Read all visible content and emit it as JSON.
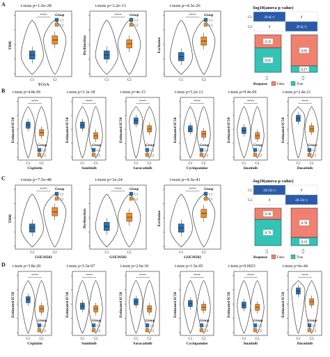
{
  "colors": {
    "C1": "#2a6fb0",
    "C2": "#ee8a2a",
    "false": "#f08070",
    "true": "#35c3b6",
    "heat_hi": "#2a5aa8",
    "heat_lo": "#ffffff"
  },
  "group_title": "Group",
  "groups": [
    "C1",
    "C2"
  ],
  "sig": "****",
  "panels": {
    "A": {
      "label": "A"
    },
    "B": {
      "label": "B"
    },
    "C": {
      "label": "C"
    },
    "D": {
      "label": "D"
    }
  },
  "chart_data": [
    {
      "type": "violin",
      "panel": "A",
      "title": "t-tests p=1.6e-28",
      "ylabel": "TIDE",
      "xlabel": "TCGA",
      "categories": [
        "C1",
        "C2"
      ],
      "medians": [
        0.35,
        0.62
      ],
      "ylim": [
        0,
        1
      ]
    },
    {
      "type": "violin",
      "panel": "A",
      "title": "t-tests p=3.2e-13",
      "ylabel": "Dysfunction",
      "xlabel": "",
      "categories": [
        "C1",
        "C2"
      ],
      "medians": [
        0.35,
        0.55
      ],
      "ylim": [
        0,
        1
      ]
    },
    {
      "type": "violin",
      "panel": "A",
      "title": "t-tests p=4.3e-26",
      "ylabel": "Exclusion",
      "xlabel": "",
      "categories": [
        "C1",
        "C2"
      ],
      "medians": [
        0.32,
        0.6
      ],
      "ylim": [
        0,
        1
      ]
    },
    {
      "type": "heatmap",
      "panel": "A",
      "title": "-log10(anova p value)",
      "rows": [
        "C1",
        "C2"
      ],
      "cols": [
        "C1",
        "C2"
      ],
      "values": [
        [
          "20.4(+)",
          "0"
        ],
        [
          "0",
          "20.4(+)"
        ]
      ]
    },
    {
      "type": "bar",
      "panel": "A",
      "stacked": true,
      "categories": [
        "C1",
        "C2"
      ],
      "series": [
        {
          "name": "False",
          "values": [
            0.35,
            0.83
          ]
        },
        {
          "name": "True",
          "values": [
            0.65,
            0.17
          ]
        }
      ],
      "legend_title": "Response"
    },
    {
      "type": "violin",
      "panel": "B",
      "title": "t-tests p=4.8e-06",
      "ylabel": "Estimated IC50",
      "xlabel": "Cisplatin",
      "categories": [
        "C1",
        "C2"
      ],
      "medians": [
        0.62,
        0.48
      ],
      "ylim": [
        0,
        1
      ]
    },
    {
      "type": "violin",
      "panel": "B",
      "title": "t-tests p=3.3e-18",
      "ylabel": "Estimated IC50",
      "xlabel": "Sunitinib",
      "categories": [
        "C1",
        "C2"
      ],
      "medians": [
        0.62,
        0.42
      ],
      "ylim": [
        0,
        1
      ]
    },
    {
      "type": "violin",
      "panel": "B",
      "title": "t-tests p=4e-15",
      "ylabel": "Estimated IC50",
      "xlabel": "Saracatinib",
      "categories": [
        "C1",
        "C2"
      ],
      "medians": [
        0.7,
        0.55
      ],
      "ylim": [
        0,
        1
      ]
    },
    {
      "type": "violin",
      "panel": "B",
      "title": "t-tests p=5.2e-13",
      "ylabel": "Estimated IC50",
      "xlabel": "Cyclopamine",
      "categories": [
        "C1",
        "C2"
      ],
      "medians": [
        0.55,
        0.45
      ],
      "ylim": [
        0,
        1
      ]
    },
    {
      "type": "violin",
      "panel": "B",
      "title": "t-tests p=9.4e-09",
      "ylabel": "Estimated IC50",
      "xlabel": "Imatinib",
      "categories": [
        "C1",
        "C2"
      ],
      "medians": [
        0.52,
        0.42
      ],
      "ylim": [
        0,
        1
      ]
    },
    {
      "type": "violin",
      "panel": "B",
      "title": "t-tests p=2.4e-21",
      "ylabel": "Estimated IC50",
      "xlabel": "Dasatinib",
      "categories": [
        "C1",
        "C2"
      ],
      "medians": [
        0.75,
        0.55
      ],
      "ylim": [
        0,
        1
      ]
    },
    {
      "type": "violin",
      "panel": "C",
      "title": "t-tests p=7.5e-48",
      "ylabel": "TIDE",
      "xlabel": "GSE39582",
      "categories": [
        "C1",
        "C2"
      ],
      "medians": [
        0.35,
        0.65
      ],
      "ylim": [
        0,
        1
      ]
    },
    {
      "type": "violin",
      "panel": "C",
      "title": "t-tests p=1e-24",
      "ylabel": "Dysfunction",
      "xlabel": "GSE39582",
      "categories": [
        "C1",
        "C2"
      ],
      "medians": [
        0.38,
        0.55
      ],
      "ylim": [
        0,
        1
      ]
    },
    {
      "type": "violin",
      "panel": "C",
      "title": "t-tests p=4.3e-41",
      "ylabel": "Exclusion",
      "xlabel": "GSE39582",
      "categories": [
        "C1",
        "C2"
      ],
      "medians": [
        0.35,
        0.62
      ],
      "ylim": [
        0,
        1
      ]
    },
    {
      "type": "heatmap",
      "panel": "C",
      "title": "-log10(anova p value)",
      "rows": [
        "C1",
        "C2"
      ],
      "cols": [
        "C1",
        "C2"
      ],
      "values": [
        [
          "28.53(+)",
          "0"
        ],
        [
          "0",
          "28.53(+)"
        ]
      ]
    },
    {
      "type": "bar",
      "panel": "C",
      "stacked": true,
      "categories": [
        "C1",
        "C2"
      ],
      "series": [
        {
          "name": "False",
          "values": [
            0.3,
            0.78
          ]
        },
        {
          "name": "True",
          "values": [
            0.7,
            0.22
          ]
        }
      ],
      "legend_title": "Response"
    },
    {
      "type": "violin",
      "panel": "D",
      "title": "t-tests p=3.8e-20",
      "ylabel": "Estimated IC50",
      "xlabel": "Cisplatin",
      "categories": [
        "C1",
        "C2"
      ],
      "medians": [
        0.62,
        0.45
      ],
      "ylim": [
        0,
        1
      ]
    },
    {
      "type": "violin",
      "panel": "D",
      "title": "t-tests p=5.5e-07",
      "ylabel": "Estimated IC50",
      "xlabel": "Sunitinib",
      "categories": [
        "C1",
        "C2"
      ],
      "medians": [
        0.5,
        0.45
      ],
      "ylim": [
        0,
        1
      ]
    },
    {
      "type": "violin",
      "panel": "D",
      "title": "t-tests p=2.6e-36",
      "ylabel": "Estimated IC50",
      "xlabel": "Saracatinib",
      "categories": [
        "C1",
        "C2"
      ],
      "medians": [
        0.58,
        0.45
      ],
      "ylim": [
        0,
        1
      ]
    },
    {
      "type": "violin",
      "panel": "D",
      "title": "t-tests p=1.5e-05",
      "ylabel": "Estimated IC50",
      "xlabel": "Cyclopamine",
      "categories": [
        "C1",
        "C2"
      ],
      "medians": [
        0.55,
        0.48
      ],
      "ylim": [
        0,
        1
      ]
    },
    {
      "type": "violin",
      "panel": "D",
      "title": "t-tests p=0.0023",
      "ylabel": "Estimated IC50",
      "xlabel": "Imatinib",
      "categories": [
        "C1",
        "C2"
      ],
      "medians": [
        0.52,
        0.48
      ],
      "ylim": [
        0,
        1
      ]
    },
    {
      "type": "violin",
      "panel": "D",
      "title": "t-tests p=6e-44",
      "ylabel": "Estimated IC50",
      "xlabel": "Dasatinib",
      "categories": [
        "C1",
        "C2"
      ],
      "medians": [
        0.78,
        0.58
      ],
      "ylim": [
        0,
        1
      ]
    }
  ]
}
